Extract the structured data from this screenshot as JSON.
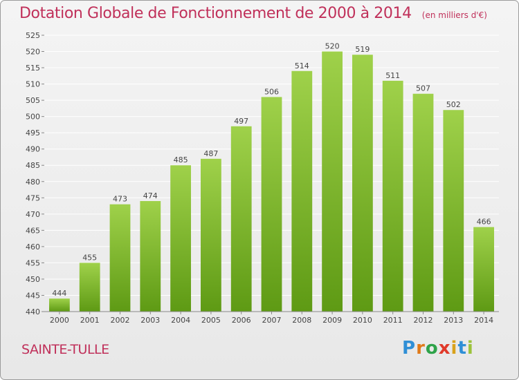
{
  "header": {
    "title": "Dotation Globale de Fonctionnement de 2000 à 2014",
    "unit": "(en milliers d'€)"
  },
  "footer": {
    "commune": "SAINTE-TULLE",
    "logo_letters": [
      "P",
      "r",
      "o",
      "x",
      "i",
      "t",
      "i"
    ]
  },
  "colors": {
    "title": "#c0305a",
    "bar_top": "#9fd14a",
    "bar_bottom": "#5e9a14",
    "grid": "#ffffff",
    "axis_text": "#444444"
  },
  "chart_data": {
    "type": "bar",
    "categories": [
      "2000",
      "2001",
      "2002",
      "2003",
      "2004",
      "2005",
      "2006",
      "2007",
      "2008",
      "2009",
      "2010",
      "2011",
      "2012",
      "2013",
      "2014"
    ],
    "values": [
      444,
      455,
      473,
      474,
      485,
      487,
      497,
      506,
      514,
      520,
      519,
      511,
      507,
      502,
      466
    ],
    "title": "Dotation Globale de Fonctionnement de 2000 à 2014",
    "xlabel": "",
    "ylabel": "",
    "ylim": [
      440,
      525
    ],
    "yticks": [
      440,
      445,
      450,
      455,
      460,
      465,
      470,
      475,
      480,
      485,
      490,
      495,
      500,
      505,
      510,
      515,
      520,
      525
    ],
    "grid": true,
    "data_labels": true
  }
}
